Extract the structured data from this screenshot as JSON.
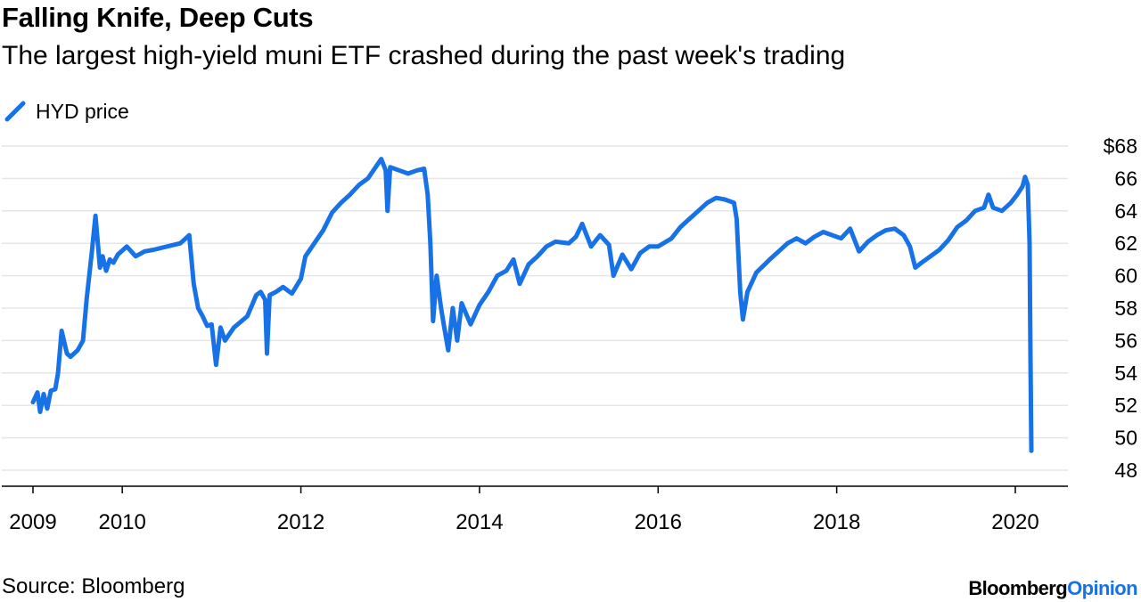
{
  "title": "Falling Knife, Deep Cuts",
  "subtitle": "The largest high-yield muni ETF crashed during the past week's trading",
  "source": "Source: Bloomberg",
  "brand": {
    "part1": "Bloomberg",
    "part2": "Opinion"
  },
  "colors": {
    "line": "#1672e6",
    "grid": "#e6e6e6",
    "axis": "#000000"
  },
  "chart_data": {
    "type": "line",
    "title": "Falling Knife, Deep Cuts",
    "subtitle": "The largest high-yield muni ETF crashed during the past week's trading",
    "legend": "top-left",
    "grid": true,
    "xlim": [
      2009.0,
      2020.6
    ],
    "ylim": [
      48,
      68
    ],
    "x_ticks": [
      2009,
      2010,
      2012,
      2014,
      2016,
      2018,
      2020
    ],
    "x_tick_labels": [
      "2009",
      "2010",
      "2012",
      "2014",
      "2016",
      "2018",
      "2020"
    ],
    "y_ticks": [
      48,
      50,
      52,
      54,
      56,
      58,
      60,
      62,
      64,
      66,
      68
    ],
    "y_tick_labels": [
      "48",
      "50",
      "52",
      "54",
      "56",
      "58",
      "60",
      "62",
      "64",
      "66",
      "$68"
    ],
    "series": [
      {
        "name": "HYD price",
        "x": [
          2009.0,
          2009.05,
          2009.08,
          2009.12,
          2009.16,
          2009.2,
          2009.25,
          2009.28,
          2009.32,
          2009.38,
          2009.42,
          2009.5,
          2009.56,
          2009.6,
          2009.66,
          2009.7,
          2009.75,
          2009.78,
          2009.82,
          2009.86,
          2009.9,
          2009.95,
          2010.05,
          2010.15,
          2010.25,
          2010.35,
          2010.5,
          2010.65,
          2010.75,
          2010.8,
          2010.85,
          2010.9,
          2010.95,
          2011.0,
          2011.05,
          2011.1,
          2011.15,
          2011.25,
          2011.4,
          2011.5,
          2011.55,
          2011.6,
          2011.62,
          2011.65,
          2011.72,
          2011.8,
          2011.9,
          2012.0,
          2012.05,
          2012.15,
          2012.25,
          2012.35,
          2012.45,
          2012.55,
          2012.65,
          2012.75,
          2012.85,
          2012.9,
          2012.95,
          2012.97,
          2013.0,
          2013.1,
          2013.2,
          2013.3,
          2013.38,
          2013.42,
          2013.45,
          2013.48,
          2013.52,
          2013.57,
          2013.6,
          2013.65,
          2013.7,
          2013.75,
          2013.8,
          2013.9,
          2014.0,
          2014.1,
          2014.2,
          2014.3,
          2014.38,
          2014.45,
          2014.55,
          2014.65,
          2014.75,
          2014.85,
          2015.0,
          2015.08,
          2015.15,
          2015.25,
          2015.35,
          2015.45,
          2015.5,
          2015.6,
          2015.7,
          2015.8,
          2015.9,
          2016.0,
          2016.15,
          2016.25,
          2016.35,
          2016.45,
          2016.55,
          2016.65,
          2016.75,
          2016.85,
          2016.88,
          2016.92,
          2016.95,
          2017.0,
          2017.1,
          2017.25,
          2017.35,
          2017.45,
          2017.55,
          2017.65,
          2017.75,
          2017.85,
          2017.95,
          2018.05,
          2018.15,
          2018.25,
          2018.35,
          2018.45,
          2018.55,
          2018.65,
          2018.75,
          2018.82,
          2018.88,
          2018.95,
          2019.05,
          2019.15,
          2019.25,
          2019.35,
          2019.45,
          2019.55,
          2019.65,
          2019.7,
          2019.75,
          2019.85,
          2019.95,
          2020.02,
          2020.08,
          2020.11,
          2020.14,
          2020.16,
          2020.17,
          2020.18
        ],
        "y": [
          52.2,
          52.8,
          51.6,
          52.7,
          51.8,
          52.9,
          53.0,
          54.0,
          56.6,
          55.2,
          55.0,
          55.4,
          56.0,
          58.5,
          61.5,
          63.7,
          60.5,
          61.2,
          60.3,
          61.0,
          60.8,
          61.3,
          61.8,
          61.2,
          61.5,
          61.6,
          61.8,
          62.0,
          62.5,
          59.5,
          58.0,
          57.5,
          56.9,
          57.0,
          54.5,
          56.8,
          56.0,
          56.8,
          57.5,
          58.8,
          59.0,
          58.5,
          55.2,
          58.8,
          59.0,
          59.3,
          58.9,
          59.8,
          61.2,
          62.0,
          62.8,
          63.9,
          64.5,
          65.0,
          65.6,
          66.0,
          66.8,
          67.2,
          66.5,
          64.0,
          66.7,
          66.5,
          66.3,
          66.5,
          66.6,
          65.0,
          62.0,
          57.2,
          60.0,
          58.0,
          57.0,
          55.4,
          58.0,
          56.0,
          58.3,
          57.0,
          58.2,
          59.0,
          60.0,
          60.3,
          61.0,
          59.5,
          60.7,
          61.2,
          61.8,
          62.1,
          62.0,
          62.4,
          63.2,
          61.8,
          62.5,
          61.9,
          60.0,
          61.3,
          60.4,
          61.4,
          61.8,
          61.8,
          62.3,
          63.0,
          63.5,
          64.0,
          64.5,
          64.8,
          64.7,
          64.5,
          63.5,
          59.0,
          57.3,
          59.0,
          60.2,
          61.0,
          61.5,
          62.0,
          62.3,
          62.0,
          62.4,
          62.7,
          62.5,
          62.3,
          62.9,
          61.5,
          62.1,
          62.5,
          62.8,
          62.9,
          62.5,
          61.8,
          60.5,
          60.8,
          61.2,
          61.6,
          62.2,
          63.0,
          63.4,
          64.0,
          64.2,
          65.0,
          64.2,
          64.0,
          64.5,
          65.0,
          65.5,
          66.1,
          65.6,
          62.0,
          55.0,
          49.2
        ]
      }
    ]
  }
}
